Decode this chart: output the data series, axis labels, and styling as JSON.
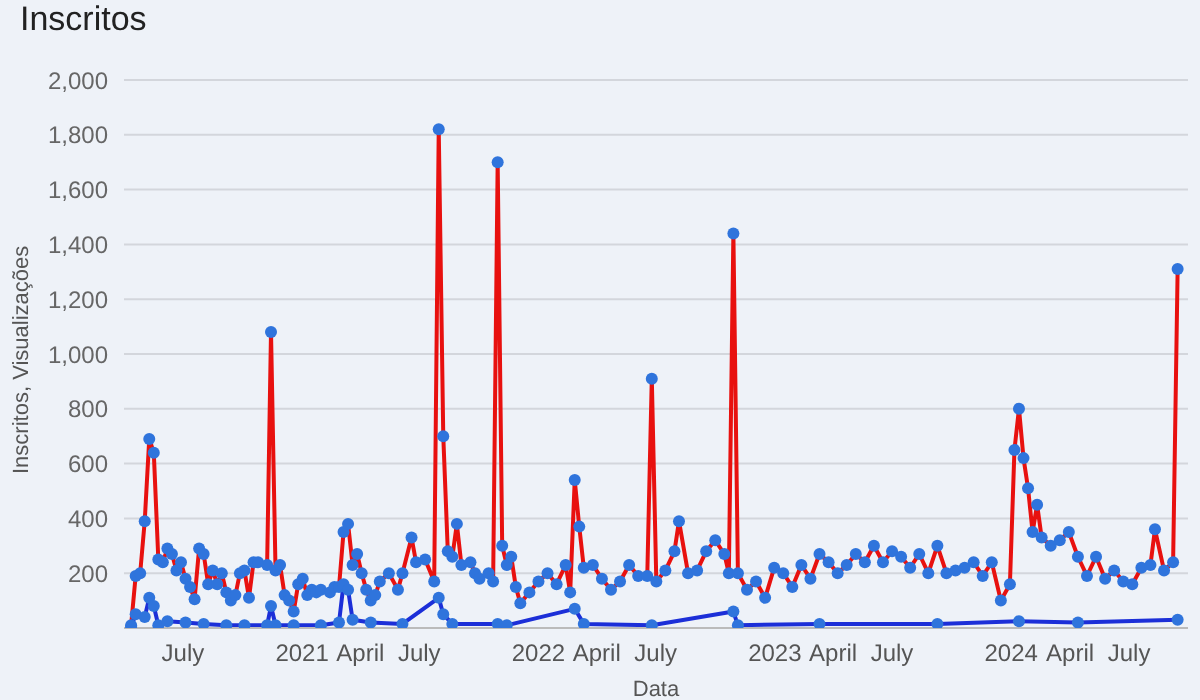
{
  "chart_data": {
    "type": "line",
    "title": "Inscritos",
    "xlabel": "Data",
    "ylabel": "Inscritos, Visualizações",
    "xlim": [
      "2020-04-01",
      "2024-09-30"
    ],
    "ylim": [
      0,
      2000
    ],
    "xticks": [
      {
        "value": "2020-07",
        "label": "July"
      },
      {
        "value": "2021-01",
        "label": "2021"
      },
      {
        "value": "2021-04",
        "label": "April"
      },
      {
        "value": "2021-07",
        "label": "July"
      },
      {
        "value": "2022-01",
        "label": "2022"
      },
      {
        "value": "2022-04",
        "label": "April"
      },
      {
        "value": "2022-07",
        "label": "July"
      },
      {
        "value": "2023-01",
        "label": "2023"
      },
      {
        "value": "2023-04",
        "label": "April"
      },
      {
        "value": "2023-07",
        "label": "July"
      },
      {
        "value": "2024-01",
        "label": "2024"
      },
      {
        "value": "2024-04",
        "label": "April"
      },
      {
        "value": "2024-07",
        "label": "July"
      }
    ],
    "yticks": [
      200,
      400,
      600,
      800,
      {
        "value": 1000,
        "label": "1,000"
      },
      {
        "value": 1200,
        "label": "1,200"
      },
      {
        "value": 1400,
        "label": "1,400"
      },
      {
        "value": 1600,
        "label": "1,600"
      },
      {
        "value": 1800,
        "label": "1,800"
      },
      {
        "value": 2000,
        "label": "2,000"
      }
    ],
    "grid": "y",
    "legend": false,
    "marker": "circle",
    "series": [
      {
        "color": "#e8110f",
        "x": [
          "2020-04-12",
          "2020-04-19",
          "2020-04-26",
          "2020-05-03",
          "2020-05-10",
          "2020-05-17",
          "2020-05-24",
          "2020-05-31",
          "2020-06-07",
          "2020-06-14",
          "2020-06-21",
          "2020-06-28",
          "2020-07-05",
          "2020-07-12",
          "2020-07-19",
          "2020-07-26",
          "2020-08-02",
          "2020-08-09",
          "2020-08-16",
          "2020-08-23",
          "2020-08-30",
          "2020-09-06",
          "2020-09-13",
          "2020-09-20",
          "2020-09-27",
          "2020-10-04",
          "2020-10-11",
          "2020-10-18",
          "2020-10-25",
          "2020-11-08",
          "2020-11-14",
          "2020-11-21",
          "2020-11-28",
          "2020-12-05",
          "2020-12-12",
          "2020-12-19",
          "2020-12-26",
          "2021-01-02",
          "2021-01-09",
          "2021-01-16",
          "2021-01-23",
          "2021-01-30",
          "2021-02-13",
          "2021-02-20",
          "2021-02-27",
          "2021-03-06",
          "2021-03-13",
          "2021-03-20",
          "2021-03-27",
          "2021-04-03",
          "2021-04-10",
          "2021-04-17",
          "2021-04-24",
          "2021-05-01",
          "2021-05-15",
          "2021-05-29",
          "2021-06-05",
          "2021-06-19",
          "2021-06-26",
          "2021-07-10",
          "2021-07-24",
          "2021-07-31",
          "2021-08-07",
          "2021-08-14",
          "2021-08-21",
          "2021-08-28",
          "2021-09-04",
          "2021-09-18",
          "2021-09-25",
          "2021-10-02",
          "2021-10-16",
          "2021-10-23",
          "2021-10-30",
          "2021-11-06",
          "2021-11-13",
          "2021-11-20",
          "2021-11-27",
          "2021-12-04",
          "2021-12-18",
          "2022-01-01",
          "2022-01-15",
          "2022-01-29",
          "2022-02-12",
          "2022-02-19",
          "2022-02-26",
          "2022-03-05",
          "2022-03-12",
          "2022-03-26",
          "2022-04-09",
          "2022-04-23",
          "2022-05-07",
          "2022-05-21",
          "2022-06-04",
          "2022-06-18",
          "2022-06-25",
          "2022-07-02",
          "2022-07-16",
          "2022-07-30",
          "2022-08-06",
          "2022-08-20",
          "2022-09-03",
          "2022-09-17",
          "2022-10-01",
          "2022-10-15",
          "2022-10-22",
          "2022-10-29",
          "2022-11-05",
          "2022-11-19",
          "2022-12-03",
          "2022-12-17",
          "2022-12-31",
          "2023-01-14",
          "2023-01-28",
          "2023-02-11",
          "2023-02-25",
          "2023-03-11",
          "2023-03-25",
          "2023-04-08",
          "2023-04-22",
          "2023-05-06",
          "2023-05-20",
          "2023-06-03",
          "2023-06-17",
          "2023-07-01",
          "2023-07-15",
          "2023-07-29",
          "2023-08-12",
          "2023-08-26",
          "2023-09-09",
          "2023-09-23",
          "2023-10-07",
          "2023-10-21",
          "2023-11-04",
          "2023-11-18",
          "2023-12-02",
          "2023-12-16",
          "2023-12-30",
          "2024-01-06",
          "2024-01-13",
          "2024-01-20",
          "2024-01-27",
          "2024-02-03",
          "2024-02-10",
          "2024-02-17",
          "2024-03-02",
          "2024-03-16",
          "2024-03-30",
          "2024-04-13",
          "2024-04-27",
          "2024-05-11",
          "2024-05-25",
          "2024-06-08",
          "2024-06-22",
          "2024-07-06",
          "2024-07-20",
          "2024-08-03",
          "2024-08-10",
          "2024-08-24",
          "2024-09-07",
          "2024-09-14"
        ],
        "values": [
          10,
          190,
          200,
          390,
          690,
          640,
          250,
          240,
          290,
          270,
          210,
          240,
          180,
          150,
          105,
          290,
          270,
          160,
          210,
          160,
          200,
          130,
          100,
          120,
          200,
          210,
          110,
          240,
          240,
          230,
          1080,
          210,
          230,
          120,
          100,
          60,
          160,
          180,
          120,
          140,
          130,
          140,
          130,
          150,
          150,
          350,
          380,
          230,
          270,
          200,
          140,
          100,
          120,
          170,
          200,
          140,
          200,
          330,
          240,
          250,
          170,
          1820,
          700,
          280,
          260,
          380,
          230,
          240,
          200,
          180,
          200,
          170,
          1700,
          300,
          230,
          260,
          150,
          90,
          130,
          170,
          200,
          160,
          230,
          130,
          540,
          370,
          220,
          230,
          180,
          140,
          170,
          230,
          190,
          190,
          910,
          170,
          210,
          280,
          390,
          200,
          210,
          280,
          320,
          270,
          200,
          1440,
          200,
          140,
          170,
          110,
          220,
          200,
          150,
          230,
          180,
          270,
          240,
          200,
          230,
          270,
          240,
          300,
          240,
          280,
          260,
          220,
          270,
          200,
          300,
          200,
          210,
          220,
          240,
          190,
          240,
          100,
          160,
          650,
          800,
          620,
          510,
          350,
          450,
          330,
          300,
          320,
          350,
          260,
          190,
          260,
          180,
          210,
          170,
          160,
          220,
          230,
          360,
          210,
          240,
          1310
        ]
      },
      {
        "color": "#1c2fd8",
        "x": [
          "2020-04-12",
          "2020-04-19",
          "2020-05-03",
          "2020-05-10",
          "2020-05-17",
          "2020-05-24",
          "2020-06-07",
          "2020-07-05",
          "2020-08-02",
          "2020-09-06",
          "2020-10-04",
          "2020-11-08",
          "2020-11-14",
          "2020-11-21",
          "2020-12-19",
          "2021-01-30",
          "2021-02-27",
          "2021-03-06",
          "2021-03-13",
          "2021-03-20",
          "2021-04-17",
          "2021-06-05",
          "2021-07-31",
          "2021-08-07",
          "2021-08-21",
          "2021-10-30",
          "2021-11-13",
          "2022-02-26",
          "2022-03-12",
          "2022-06-25",
          "2022-10-29",
          "2022-11-05",
          "2023-03-11",
          "2023-09-09",
          "2024-01-13",
          "2024-04-13",
          "2024-09-14"
        ],
        "values": [
          5,
          50,
          40,
          110,
          80,
          10,
          25,
          20,
          15,
          10,
          10,
          10,
          80,
          10,
          10,
          10,
          20,
          160,
          140,
          30,
          20,
          15,
          110,
          50,
          15,
          15,
          10,
          70,
          15,
          10,
          60,
          10,
          15,
          15,
          25,
          20,
          30
        ]
      }
    ]
  }
}
